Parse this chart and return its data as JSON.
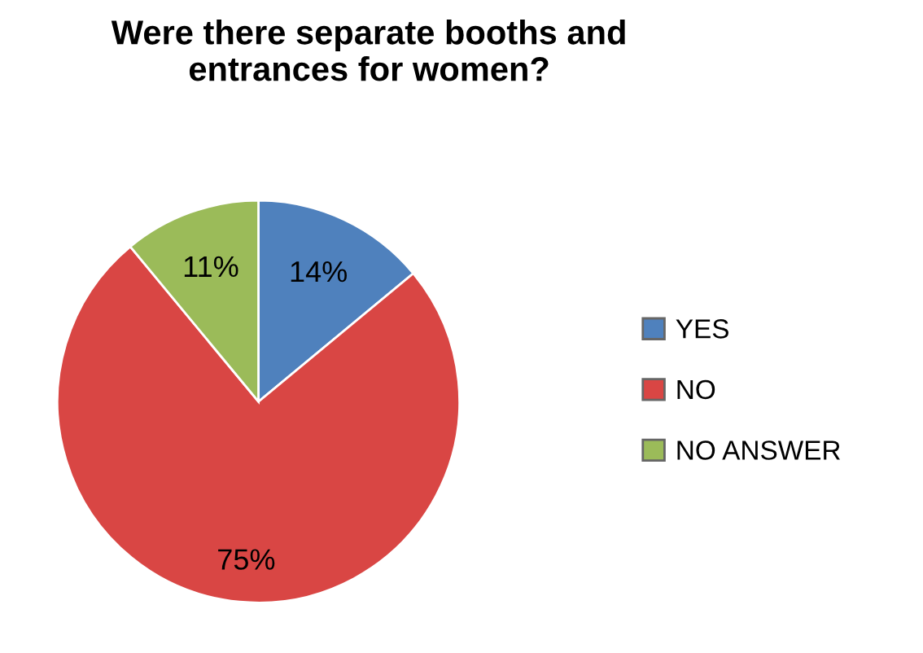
{
  "chart_data": {
    "type": "pie",
    "title": "Were there separate booths and\nentrances for women?",
    "categories": [
      "YES",
      "NO",
      "NO ANSWER"
    ],
    "values": [
      14,
      75,
      11
    ],
    "value_labels": [
      "14%",
      "75%",
      "11%"
    ],
    "colors": [
      "#4f81bd",
      "#d94644",
      "#9bbb59"
    ],
    "legend": "right"
  }
}
